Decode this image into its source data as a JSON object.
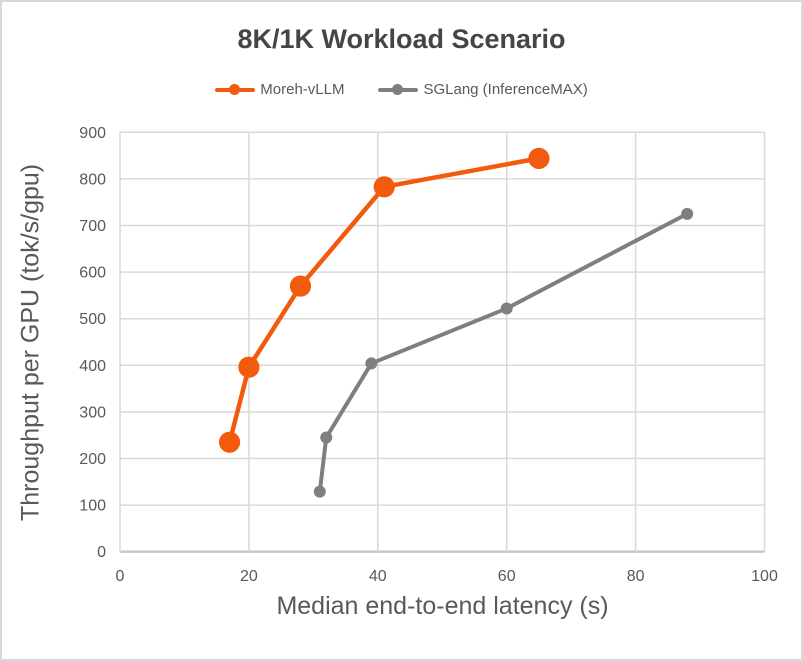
{
  "chart_data": {
    "type": "line",
    "title": "8K/1K Workload Scenario",
    "xlabel": "Median end-to-end latency (s)",
    "ylabel": "Throughput per GPU (tok/s/gpu)",
    "xlim": [
      0,
      100
    ],
    "ylim": [
      0,
      900
    ],
    "x_ticks": [
      0,
      20,
      40,
      60,
      80,
      100
    ],
    "y_ticks": [
      0,
      100,
      200,
      300,
      400,
      500,
      600,
      700,
      800,
      900
    ],
    "grid": true,
    "legend_position": "top-center",
    "series": [
      {
        "name": "Moreh-vLLM",
        "color": "#F25B0D",
        "points": [
          [
            17,
            235
          ],
          [
            20,
            396
          ],
          [
            28,
            570
          ],
          [
            41,
            783
          ],
          [
            65,
            844
          ]
        ]
      },
      {
        "name": "SGLang (InferenceMAX)",
        "color": "#7F7F7F",
        "points": [
          [
            31,
            129
          ],
          [
            32,
            245
          ],
          [
            39,
            404
          ],
          [
            60,
            522
          ],
          [
            88,
            725
          ]
        ]
      }
    ]
  },
  "colors": {
    "title_text": "#454545",
    "axis_text": "#595959",
    "gridline": "#D9D9D9",
    "axis_line": "#C6C6C6",
    "canvas_border": "#D8D8D8",
    "background": "#FFFFFF"
  }
}
